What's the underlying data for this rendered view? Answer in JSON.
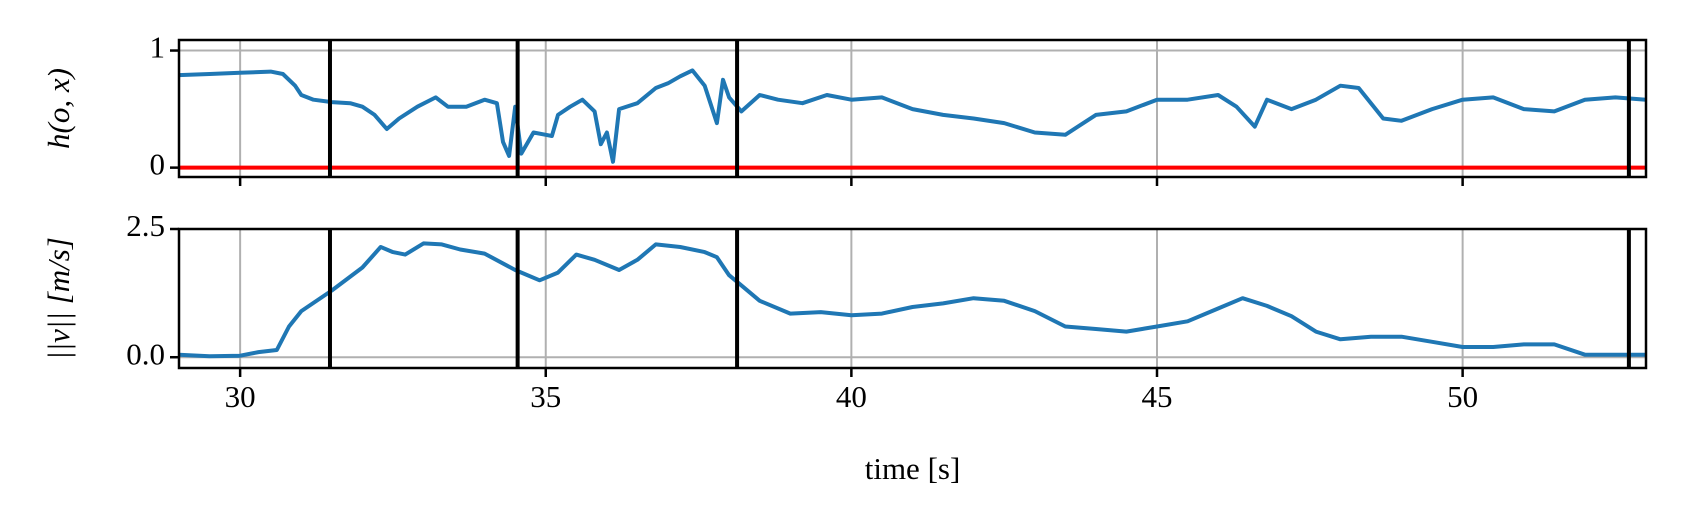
{
  "chart_data": [
    {
      "type": "line",
      "ylabel": "h(o, x)",
      "xlim": [
        29.0,
        53.0
      ],
      "xticks": [
        30,
        35,
        40,
        45,
        50
      ],
      "xticklabels": false,
      "ylim": [
        -0.08,
        1.09
      ],
      "yticks": [
        0,
        1
      ],
      "grid": true,
      "vlines": [
        31.47,
        34.54,
        38.13,
        52.72
      ],
      "vline_color": "#000000",
      "hlines": [
        0
      ],
      "hline_color": "#ff0000",
      "x": [
        29.0,
        29.5,
        30.0,
        30.5,
        30.7,
        30.9,
        31.0,
        31.2,
        31.5,
        31.8,
        32.0,
        32.2,
        32.4,
        32.6,
        32.9,
        33.2,
        33.4,
        33.7,
        34.0,
        34.2,
        34.3,
        34.4,
        34.5,
        34.6,
        34.8,
        35.0,
        35.1,
        35.2,
        35.4,
        35.6,
        35.8,
        35.9,
        36.0,
        36.1,
        36.2,
        36.5,
        36.8,
        37.0,
        37.2,
        37.4,
        37.6,
        37.8,
        37.9,
        38.0,
        38.2,
        38.5,
        38.8,
        39.2,
        39.6,
        40.0,
        40.5,
        41.0,
        41.5,
        42.0,
        42.5,
        43.0,
        43.5,
        44.0,
        44.5,
        45.0,
        45.5,
        46.0,
        46.3,
        46.6,
        46.8,
        47.2,
        47.6,
        48.0,
        48.3,
        48.7,
        49.0,
        49.5,
        50.0,
        50.5,
        51.0,
        51.5,
        52.0,
        52.5,
        53.0
      ],
      "series": [
        {
          "color": "#1f77b4",
          "values": [
            0.79,
            0.8,
            0.81,
            0.82,
            0.8,
            0.7,
            0.62,
            0.58,
            0.56,
            0.55,
            0.52,
            0.45,
            0.33,
            0.42,
            0.52,
            0.6,
            0.52,
            0.52,
            0.58,
            0.55,
            0.22,
            0.1,
            0.52,
            0.12,
            0.3,
            0.28,
            0.27,
            0.45,
            0.52,
            0.58,
            0.48,
            0.2,
            0.3,
            0.05,
            0.5,
            0.55,
            0.68,
            0.72,
            0.78,
            0.83,
            0.7,
            0.38,
            0.75,
            0.6,
            0.48,
            0.62,
            0.58,
            0.55,
            0.62,
            0.58,
            0.6,
            0.5,
            0.45,
            0.42,
            0.38,
            0.3,
            0.28,
            0.45,
            0.48,
            0.58,
            0.58,
            0.62,
            0.52,
            0.35,
            0.58,
            0.5,
            0.58,
            0.7,
            0.68,
            0.42,
            0.4,
            0.5,
            0.58,
            0.6,
            0.5,
            0.48,
            0.58,
            0.6,
            0.58
          ]
        }
      ]
    },
    {
      "type": "line",
      "ylabel": "||v|| [m/s]",
      "xlabel": "time [s]",
      "xlim": [
        29.0,
        53.0
      ],
      "xticks": [
        30,
        35,
        40,
        45,
        50
      ],
      "xticklabels": true,
      "ylim": [
        -0.21,
        2.5
      ],
      "yticks": [
        {
          "value": 0,
          "label": "0.0"
        },
        {
          "value": 2.5,
          "label": "2.5"
        }
      ],
      "grid": true,
      "vlines": [
        31.47,
        34.54,
        38.13,
        52.72
      ],
      "vline_color": "#000000",
      "x": [
        29.0,
        29.5,
        30.0,
        30.3,
        30.6,
        30.8,
        31.0,
        31.5,
        32.0,
        32.3,
        32.5,
        32.7,
        33.0,
        33.3,
        33.6,
        34.0,
        34.5,
        34.9,
        35.2,
        35.5,
        35.8,
        36.2,
        36.5,
        36.8,
        37.2,
        37.6,
        37.8,
        38.0,
        38.2,
        38.5,
        39.0,
        39.5,
        40.0,
        40.5,
        41.0,
        41.5,
        42.0,
        42.5,
        43.0,
        43.5,
        44.0,
        44.5,
        45.0,
        45.5,
        46.0,
        46.4,
        46.8,
        47.2,
        47.6,
        48.0,
        48.5,
        49.0,
        49.5,
        50.0,
        50.5,
        51.0,
        51.5,
        52.0,
        52.5,
        53.0
      ],
      "series": [
        {
          "color": "#1f77b4",
          "values": [
            0.05,
            0.02,
            0.03,
            0.1,
            0.14,
            0.6,
            0.9,
            1.3,
            1.75,
            2.15,
            2.05,
            2.0,
            2.22,
            2.2,
            2.1,
            2.02,
            1.7,
            1.5,
            1.65,
            2.0,
            1.9,
            1.7,
            1.9,
            2.2,
            2.15,
            2.05,
            1.95,
            1.6,
            1.4,
            1.1,
            0.85,
            0.88,
            0.82,
            0.85,
            0.98,
            1.05,
            1.15,
            1.1,
            0.9,
            0.6,
            0.55,
            0.5,
            0.6,
            0.7,
            0.95,
            1.15,
            1.0,
            0.8,
            0.5,
            0.35,
            0.4,
            0.4,
            0.3,
            0.2,
            0.2,
            0.25,
            0.25,
            0.05,
            0.05,
            0.05
          ]
        }
      ]
    }
  ]
}
